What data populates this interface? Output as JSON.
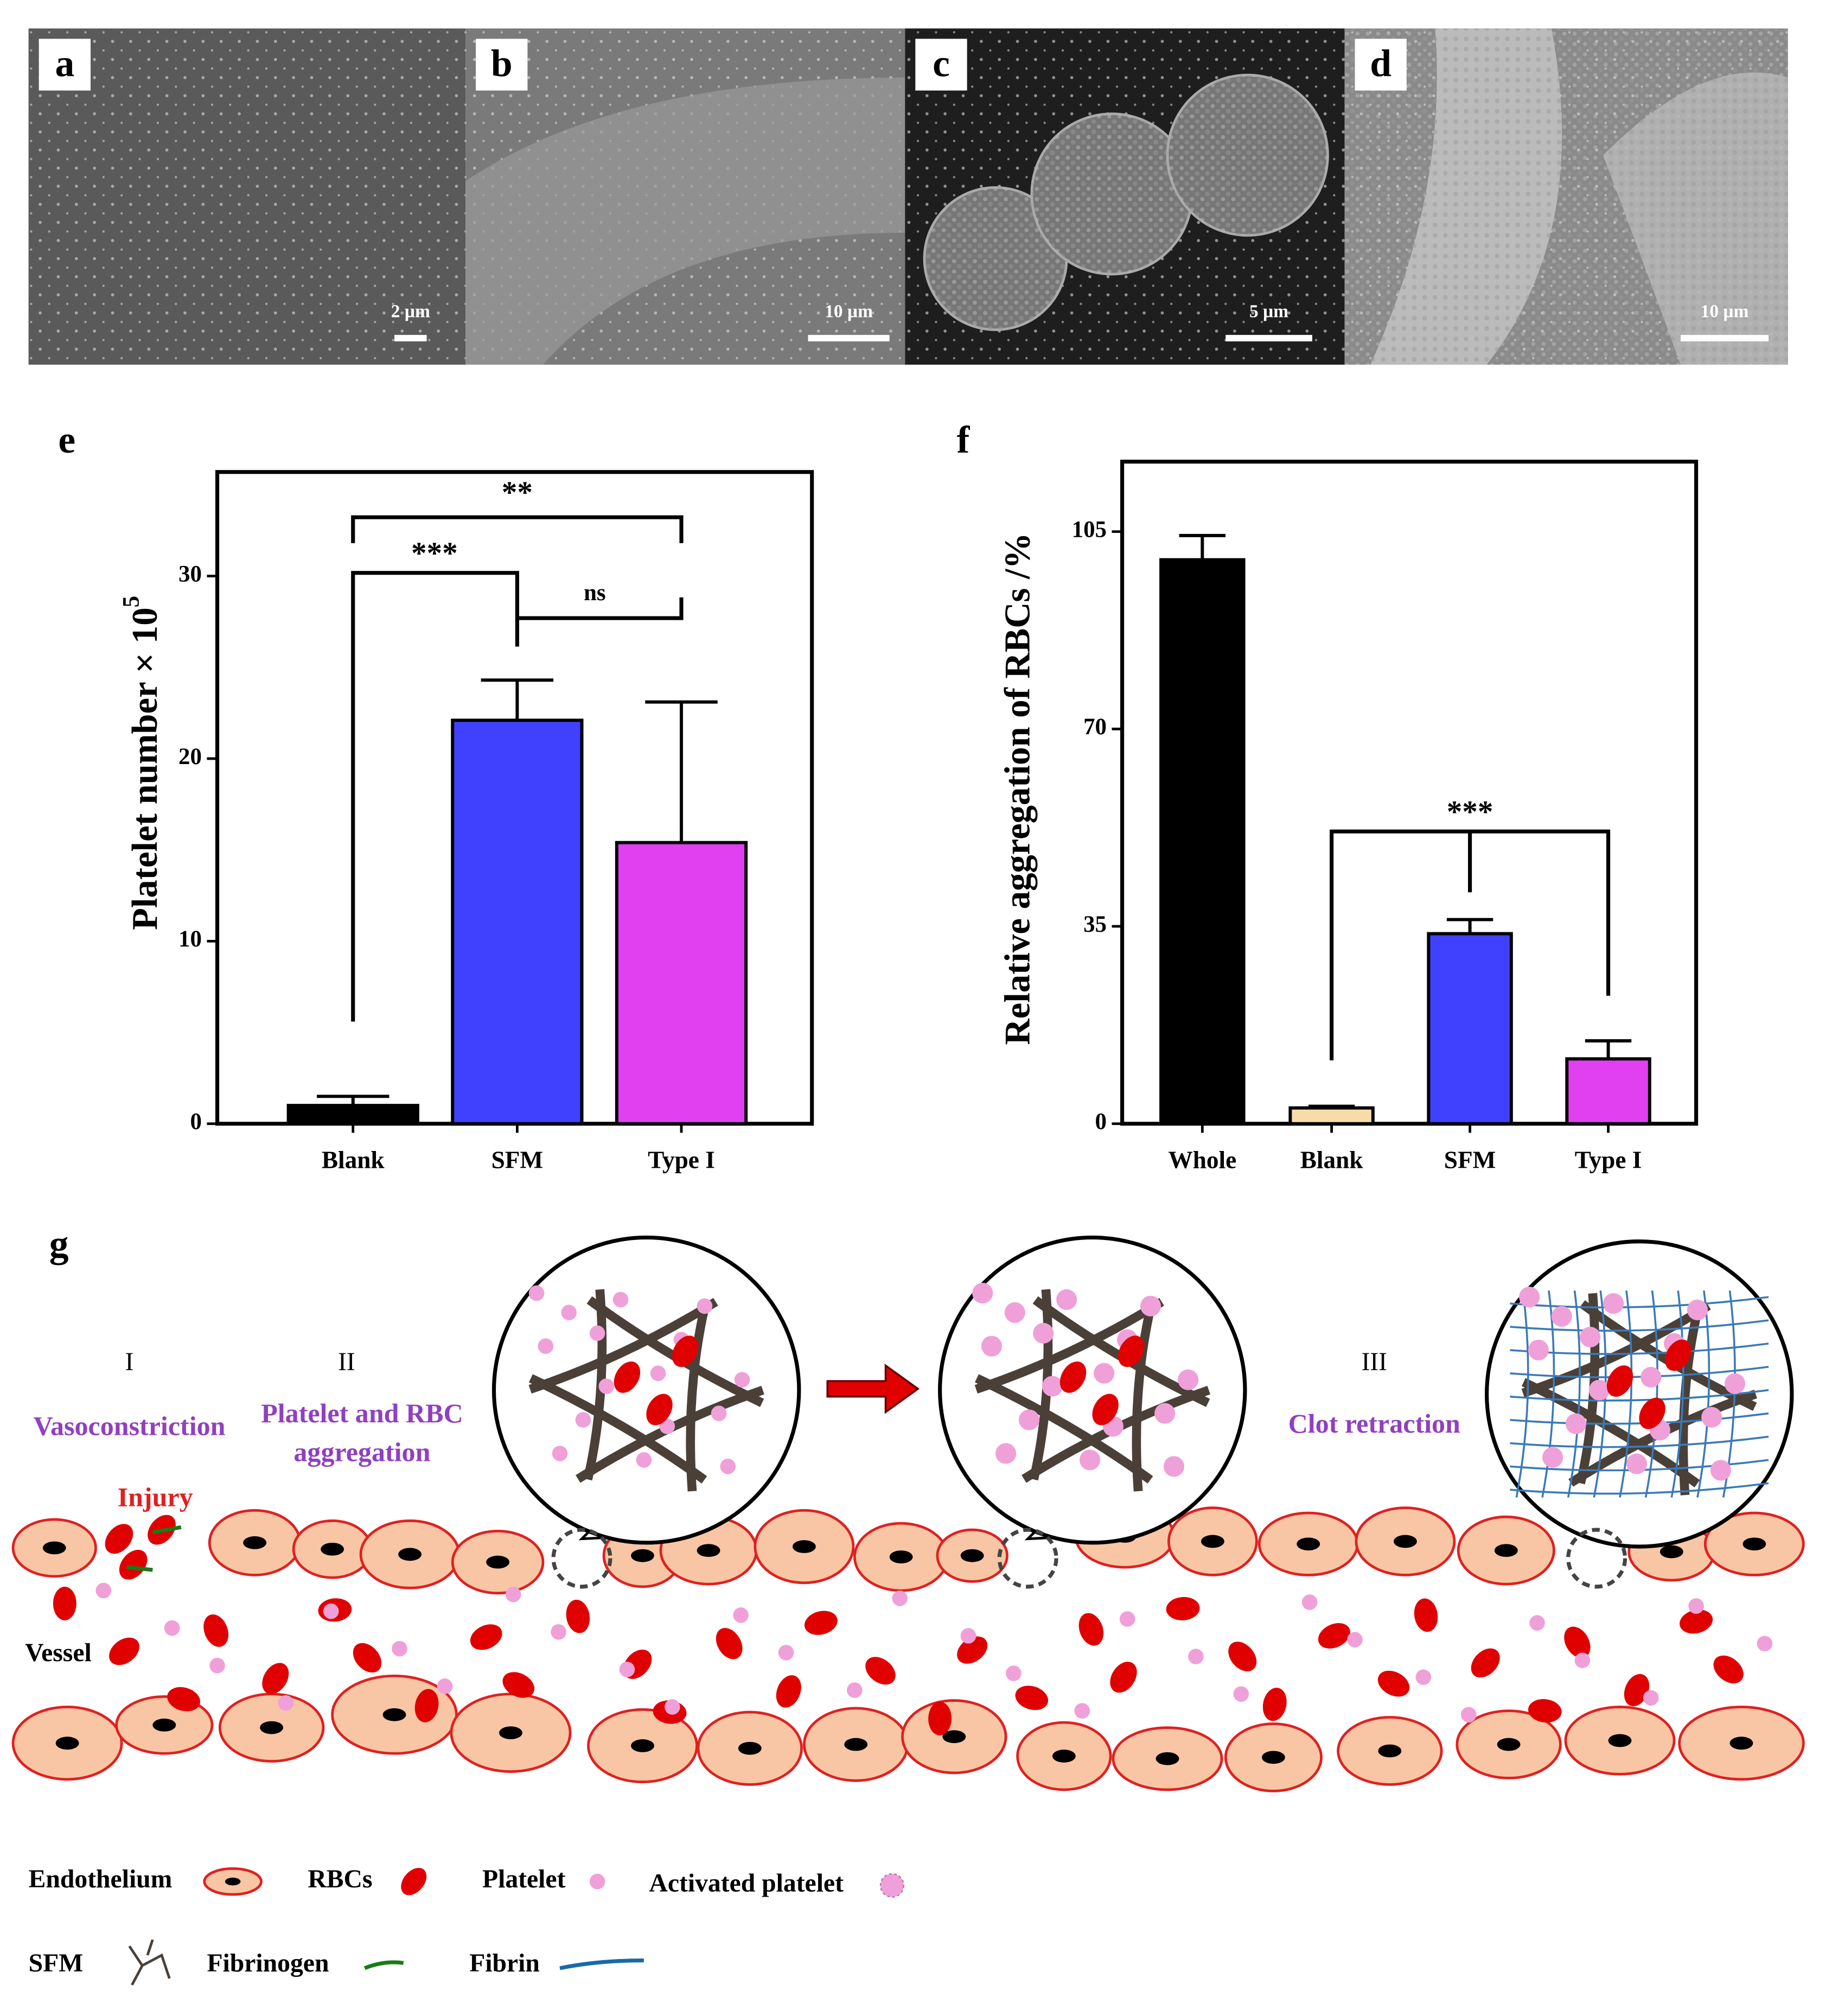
{
  "panels": [
    {
      "label": "a",
      "scale": "2 µm"
    },
    {
      "label": "b",
      "scale": "10 µm"
    },
    {
      "label": "c",
      "scale": "5 µm"
    },
    {
      "label": "d",
      "scale": "10 µm"
    }
  ],
  "chart_data": [
    {
      "type": "bar",
      "label": "e",
      "ylabel": "Platelet number × 10",
      "ylabel_superscript": "5",
      "categories": [
        "Blank",
        "SFM",
        "Type I"
      ],
      "values": [
        1.0,
        22.1,
        15.4
      ],
      "errors": [
        0.5,
        2.2,
        7.7
      ],
      "colors": [
        "#000000",
        "#4040ff",
        "#e040f0"
      ],
      "ylim": [
        0,
        35.7
      ],
      "yticks": [
        0,
        10,
        20,
        30
      ],
      "annotations": [
        "**",
        "***",
        "ns"
      ]
    },
    {
      "type": "bar",
      "label": "f",
      "ylabel": "Relative aggregation of RBCs /%",
      "categories": [
        "Whole",
        "Blank",
        "SFM",
        "Type I"
      ],
      "values": [
        100,
        2.8,
        33.7,
        11.5
      ],
      "errors": [
        4.3,
        0.3,
        2.5,
        3.2
      ],
      "colors": [
        "#000000",
        "#f8dca8",
        "#4040ff",
        "#e040f0"
      ],
      "ylim": [
        0,
        117.4
      ],
      "yticks": [
        0,
        35,
        70,
        105
      ],
      "annotations": [
        "***"
      ]
    }
  ],
  "diagram": {
    "label": "g",
    "stages": [
      {
        "numeral": "I",
        "text": [
          "Vasoconstriction"
        ]
      },
      {
        "numeral": "II",
        "text": [
          "Platelet and RBC",
          "aggregation"
        ]
      },
      {
        "numeral": "III",
        "text": [
          "Clot retraction"
        ]
      }
    ],
    "injury": "Injury",
    "vessel": "Vessel",
    "legend": [
      "Endothelium",
      "RBCs",
      "Platelet",
      "Activated platelet",
      "SFM",
      "Fibrinogen",
      "Fibrin"
    ]
  }
}
